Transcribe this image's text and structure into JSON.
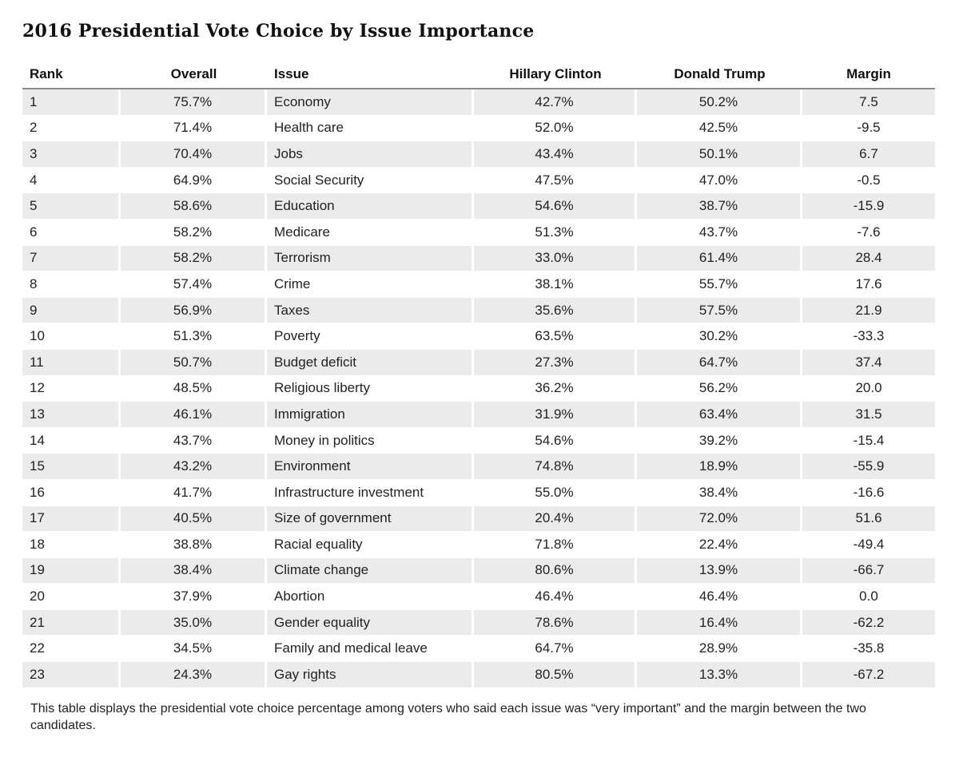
{
  "title": "2016 Presidential Vote Choice by Issue Importance",
  "chart_data": {
    "type": "table",
    "title": "2016 Presidential Vote Choice by Issue Importance",
    "columns": [
      "Rank",
      "Overall",
      "Issue",
      "Hillary Clinton",
      "Donald Trump",
      "Margin"
    ],
    "rows": [
      [
        "1",
        "75.7%",
        "Economy",
        "42.7%",
        "50.2%",
        "7.5"
      ],
      [
        "2",
        "71.4%",
        "Health care",
        "52.0%",
        "42.5%",
        "-9.5"
      ],
      [
        "3",
        "70.4%",
        "Jobs",
        "43.4%",
        "50.1%",
        "6.7"
      ],
      [
        "4",
        "64.9%",
        "Social Security",
        "47.5%",
        "47.0%",
        "-0.5"
      ],
      [
        "5",
        "58.6%",
        "Education",
        "54.6%",
        "38.7%",
        "-15.9"
      ],
      [
        "6",
        "58.2%",
        "Medicare",
        "51.3%",
        "43.7%",
        "-7.6"
      ],
      [
        "7",
        "58.2%",
        "Terrorism",
        "33.0%",
        "61.4%",
        "28.4"
      ],
      [
        "8",
        "57.4%",
        "Crime",
        "38.1%",
        "55.7%",
        "17.6"
      ],
      [
        "9",
        "56.9%",
        "Taxes",
        "35.6%",
        "57.5%",
        "21.9"
      ],
      [
        "10",
        "51.3%",
        "Poverty",
        "63.5%",
        "30.2%",
        "-33.3"
      ],
      [
        "11",
        "50.7%",
        "Budget deficit",
        "27.3%",
        "64.7%",
        "37.4"
      ],
      [
        "12",
        "48.5%",
        "Religious liberty",
        "36.2%",
        "56.2%",
        "20.0"
      ],
      [
        "13",
        "46.1%",
        "Immigration",
        "31.9%",
        "63.4%",
        "31.5"
      ],
      [
        "14",
        "43.7%",
        "Money in politics",
        "54.6%",
        "39.2%",
        "-15.4"
      ],
      [
        "15",
        "43.2%",
        "Environment",
        "74.8%",
        "18.9%",
        "-55.9"
      ],
      [
        "16",
        "41.7%",
        "Infrastructure investment",
        "55.0%",
        "38.4%",
        "-16.6"
      ],
      [
        "17",
        "40.5%",
        "Size of government",
        "20.4%",
        "72.0%",
        "51.6"
      ],
      [
        "18",
        "38.8%",
        "Racial equality",
        "71.8%",
        "22.4%",
        "-49.4"
      ],
      [
        "19",
        "38.4%",
        "Climate change",
        "80.6%",
        "13.9%",
        "-66.7"
      ],
      [
        "20",
        "37.9%",
        "Abortion",
        "46.4%",
        "46.4%",
        "0.0"
      ],
      [
        "21",
        "35.0%",
        "Gender equality",
        "78.6%",
        "16.4%",
        "-62.2"
      ],
      [
        "22",
        "34.5%",
        "Family and medical leave",
        "64.7%",
        "28.9%",
        "-35.8"
      ],
      [
        "23",
        "24.3%",
        "Gay rights",
        "80.5%",
        "13.3%",
        "-67.2"
      ]
    ]
  },
  "footnote": "This table displays the presidential vote choice percentage among voters who said each issue was “very important” and the margin between the two candidates.",
  "colors": {
    "row_shade": "#ebebeb",
    "row_plain": "#ffffff",
    "header_rule": "#8a8a8a"
  }
}
